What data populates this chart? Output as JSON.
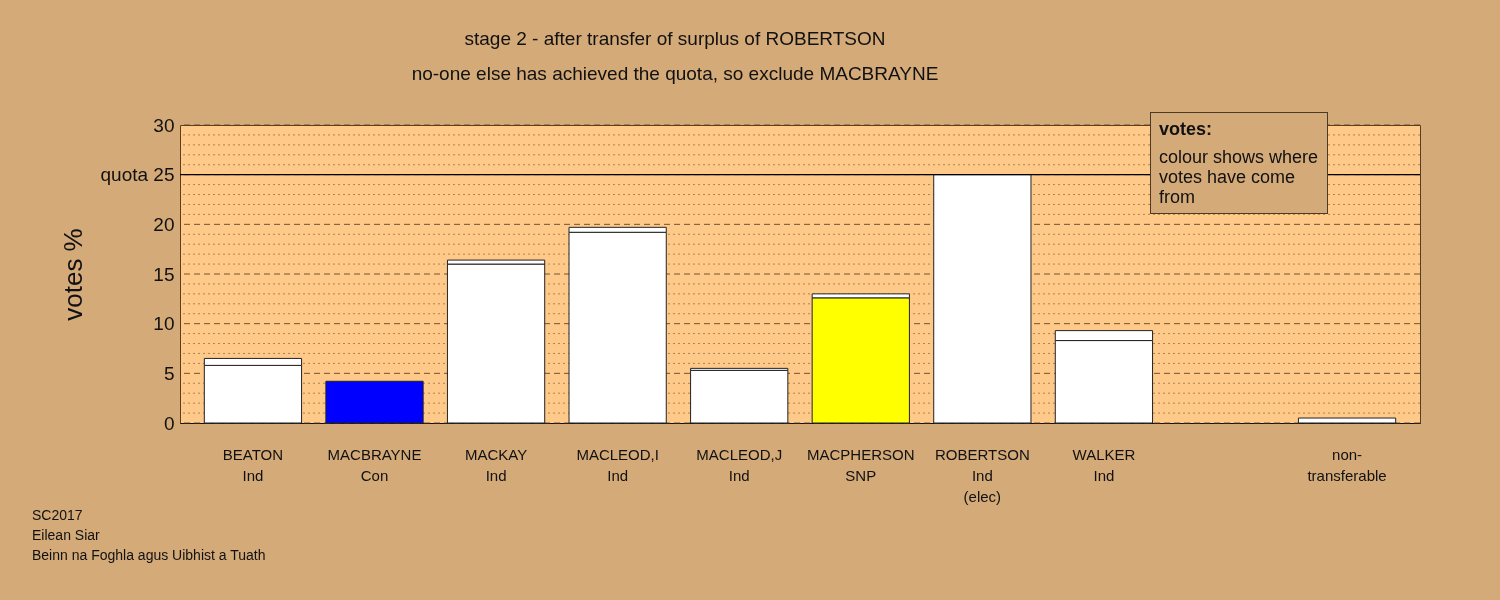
{
  "chart_data": {
    "type": "bar",
    "stacked": true,
    "title": "stage 2 - after transfer of surplus of ROBERTSON",
    "subtitle": "no-one else has achieved the quota, so exclude MACBRAYNE",
    "ylabel": "votes %",
    "categories": [
      "BEATON\nInd",
      "MACBRAYNE\nCon",
      "MACKAY\nInd",
      "MACLEOD,I\nInd",
      "MACLEOD,J\nInd",
      "MACPHERSON\nSNP",
      "ROBERTSON\nInd\n(elec)",
      "WALKER\nInd",
      null,
      "non-\ntransferable"
    ],
    "series": [
      {
        "colors": [
          "#ffffff",
          "#0000ff",
          "#ffffff",
          "#ffffff",
          "#ffffff",
          "#ffff00",
          "#ffffff",
          "#ffffff",
          null,
          null
        ],
        "values": [
          5.8,
          4.2,
          16.0,
          19.2,
          5.3,
          12.6,
          25,
          8.3,
          null,
          null
        ]
      },
      {
        "color": "#ffffff",
        "values": [
          0.7,
          null,
          0.4,
          0.5,
          0.2,
          0.4,
          null,
          1.0,
          null,
          0.5
        ]
      }
    ],
    "ylim": [
      0,
      30
    ],
    "yticks": [
      0,
      {
        "value": 1,
        "label": null
      },
      {
        "value": 2,
        "label": null
      },
      {
        "value": 3,
        "label": null
      },
      {
        "value": 4,
        "label": null
      },
      5,
      {
        "value": 6,
        "label": null
      },
      {
        "value": 7,
        "label": null
      },
      {
        "value": 8,
        "label": null
      },
      {
        "value": 9,
        "label": null
      },
      10,
      {
        "value": 11,
        "label": null
      },
      {
        "value": 12,
        "label": null
      },
      {
        "value": 13,
        "label": null
      },
      {
        "value": 14,
        "label": null
      },
      15,
      {
        "value": 16,
        "label": null
      },
      {
        "value": 17,
        "label": null
      },
      {
        "value": 18,
        "label": null
      },
      {
        "value": 19,
        "label": null
      },
      20,
      {
        "value": 21,
        "label": null
      },
      {
        "value": 22,
        "label": null
      },
      {
        "value": 23,
        "label": null
      },
      {
        "value": 24,
        "label": null
      },
      {
        "value": 25,
        "label": "quota 25"
      },
      {
        "value": 26,
        "label": null
      },
      {
        "value": 27,
        "label": null
      },
      {
        "value": 28,
        "label": null
      },
      {
        "value": 29,
        "label": null
      },
      30
    ],
    "grid": "y",
    "ref_lines": [
      {
        "axis": "y",
        "value": 25,
        "color": "#000000",
        "line_style": "solid"
      }
    ],
    "annotations": [
      "votes:",
      "colour shows where votes have come from",
      "SC2017",
      "Eilean Siar",
      "Beinn na Foghla agus Uibhist a Tuath"
    ]
  }
}
